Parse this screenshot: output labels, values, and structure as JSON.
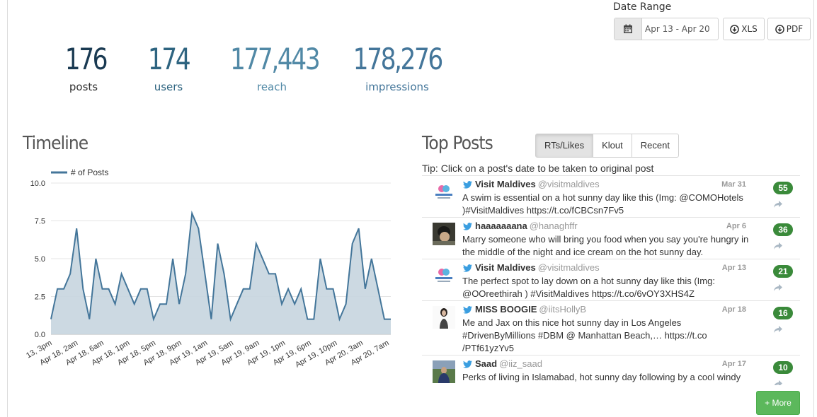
{
  "date_range": {
    "label": "Date Range",
    "value": "Apr 13 - Apr 20"
  },
  "export": {
    "xls": "XLS",
    "pdf": "PDF"
  },
  "stats": {
    "posts": {
      "value": "176",
      "label": "posts"
    },
    "users": {
      "value": "174",
      "label": "users"
    },
    "reach": {
      "value": "177,443",
      "label": "reach"
    },
    "impressions": {
      "value": "178,276",
      "label": "impressions"
    }
  },
  "timeline": {
    "title": "Timeline"
  },
  "top_posts": {
    "title": "Top Posts",
    "tabs": [
      "RTs/Likes",
      "Klout",
      "Recent"
    ],
    "active_tab": "RTs/Likes",
    "tip": "Tip: Click on a post's date to be taken to original post",
    "more_label": "+ More",
    "posts": [
      {
        "name": "Visit Maldives",
        "handle": "@visitmaldives",
        "date": "Mar 31",
        "text": "A swim is essential on a hot sunny day like this (Img: @COMOHotels )#VisitMaldives https://t.co/fCBCsn7Fv5",
        "count": "55"
      },
      {
        "name": "haaaaaaana",
        "handle": "@hanaghffr",
        "date": "Apr 6",
        "text": "Marry someone who will bring you food when you say you're hungry in the middle of the night and ice cream on the hot sunny day.",
        "count": "36"
      },
      {
        "name": "Visit Maldives",
        "handle": "@visitmaldives",
        "date": "Apr 13",
        "text": "The perfect spot to lay down on a hot sunny day like this (Img: @OOreethirah ) #VisitMaldives https://t.co/6vOY3XHS4Z",
        "count": "21"
      },
      {
        "name": "MISS BOOGIE",
        "handle": "@iitsHollyB",
        "date": "Apr 18",
        "text": "Me and Jax on this nice hot sunny day in Los Angeles #DrivenByMillions #DBM @ Manhattan Beach,… https://t.co /PTf61yzYv5",
        "count": "16"
      },
      {
        "name": "Saad",
        "handle": "@iiz_saad",
        "date": "Apr 17",
        "text": "Perks of living in Islamabad, hot sunny day following by a cool windy evening. Monday is perfect!",
        "count": "10"
      }
    ]
  },
  "colors": {
    "accent_green": "#5cb85c",
    "badge_green": "#3a8a3a",
    "chart_line": "#44769a",
    "chart_fill": "#c6d5df"
  },
  "chart_data": {
    "type": "area",
    "legend": [
      "# of Posts"
    ],
    "legend_position": "top-left",
    "ylim": [
      0,
      10
    ],
    "yticks": [
      "0.0",
      "2.5",
      "5.0",
      "7.5",
      "10.0"
    ],
    "xtick_labels": [
      "13, 3pm",
      "Apr 18, 2am",
      "Apr 18, 6am",
      "Apr 18, 1pm",
      "Apr 18, 5pm",
      "Apr 18, 9pm",
      "Apr 19, 1am",
      "Apr 19, 5am",
      "Apr 19, 9am",
      "Apr 19, 1pm",
      "Apr 19, 6pm",
      "Apr 19, 10pm",
      "Apr 20, 3am",
      "Apr 20, 7am"
    ],
    "grid": true,
    "series": [
      {
        "name": "# of Posts",
        "values": [
          1,
          3,
          3,
          4,
          7,
          3,
          1,
          5,
          3,
          3,
          2,
          4,
          3,
          2,
          3,
          3,
          1,
          2,
          2,
          5,
          2,
          4,
          8,
          7,
          4,
          1,
          6,
          4,
          1,
          2,
          3,
          3,
          6,
          5,
          4,
          4,
          2,
          3,
          2,
          3,
          1,
          1,
          5,
          3,
          3,
          1,
          2,
          6,
          7,
          3,
          5,
          3,
          1,
          1
        ]
      }
    ]
  }
}
